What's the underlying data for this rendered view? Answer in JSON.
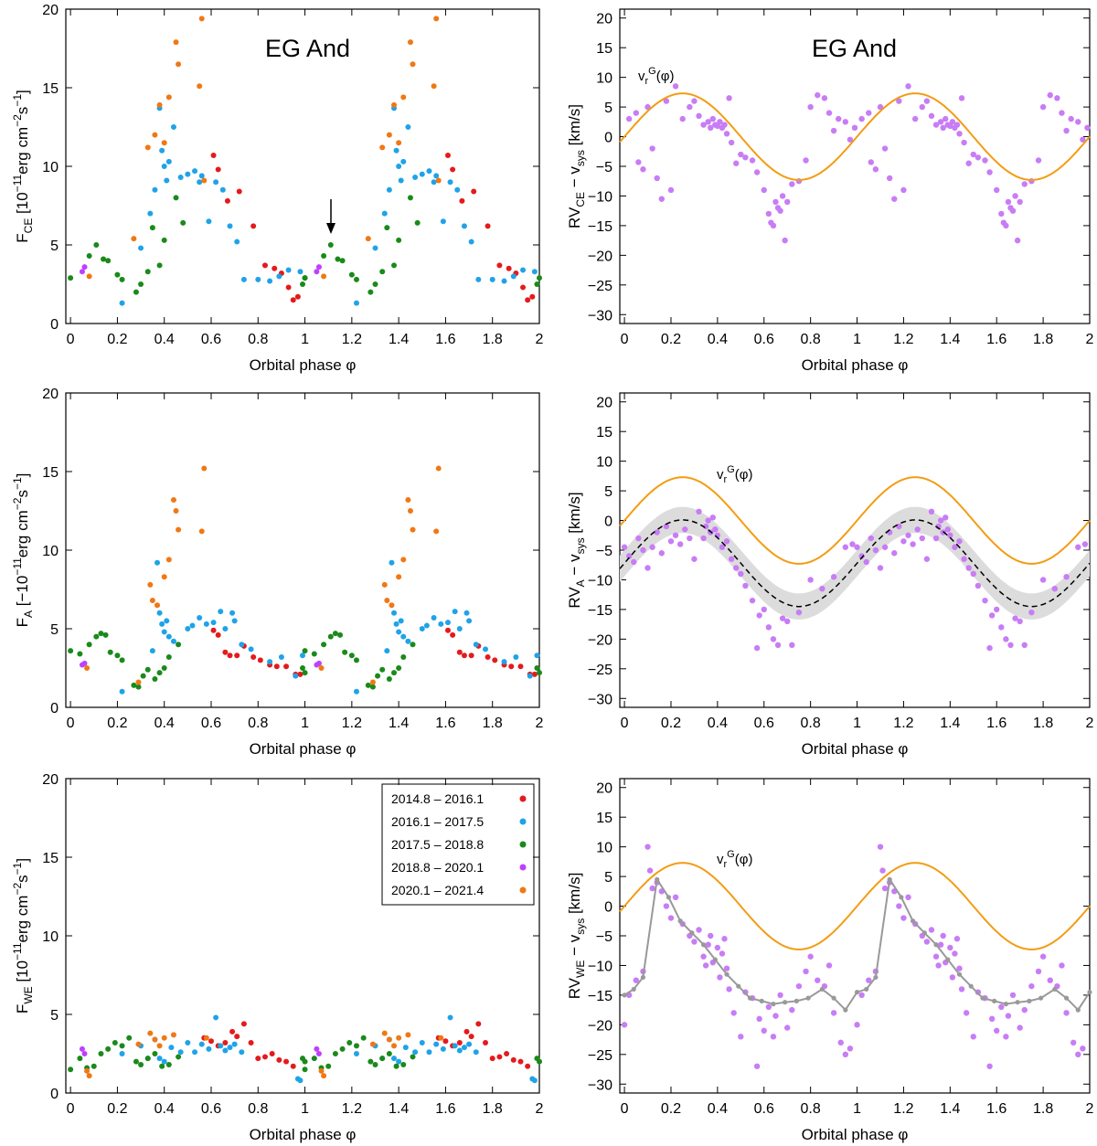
{
  "chart_data": {
    "type": "scatter",
    "figure_title": "EG And",
    "legend": [
      {
        "label": "2014.8 – 2016.1",
        "color": "#e41a1c"
      },
      {
        "label": "2016.1 – 2017.5",
        "color": "#1fa3e8"
      },
      {
        "label": "2017.5 – 2018.8",
        "color": "#1a8a1a"
      },
      {
        "label": "2018.8 – 2020.1",
        "color": "#bf3fff"
      },
      {
        "label": "2020.1 – 2021.4",
        "color": "#f07814"
      }
    ],
    "colors": {
      "orbit_curve": "#f39c12",
      "rv_points": "#c87cf5",
      "band": "#dcdcdc",
      "mean_line": "#000000",
      "we_line": "#999999"
    },
    "xlabel": "Orbital phase φ",
    "xlim": [
      -0.02,
      2.0
    ],
    "xticks": [
      "0",
      "0.2",
      "0.4",
      "0.6",
      "0.8",
      "1",
      "1.2",
      "1.4",
      "1.6",
      "1.8",
      "2"
    ],
    "flux_ylim": [
      0,
      20
    ],
    "flux_yticks": [
      "0",
      "5",
      "10",
      "15",
      "20"
    ],
    "rv_ylim": [
      -31.5,
      21.5
    ],
    "rv_yticks": [
      "20",
      "15",
      "10",
      "5",
      "0",
      "−5",
      "−10",
      "−15",
      "−20",
      "−25",
      "−30"
    ],
    "rv_curve_label": {
      "base": "v",
      "sub": "r",
      "sup": "G",
      "tail": "(φ)"
    },
    "rv_curve": {
      "amplitude": 7.3,
      "offset": 0
    },
    "panels": {
      "ce_flux": {
        "title": "EG And",
        "ylabel": {
          "base": "F",
          "sub": "CE",
          "rest": " [10",
          "exp1": "−11",
          "mid": "erg cm",
          "exp2": "−2",
          "mid2": "s",
          "exp3": "−1",
          "end": "]"
        },
        "annotation": "arrow at φ = 1.1",
        "series": [
          {
            "name": "2014.8 – 2016.1",
            "x": [
              0.67,
              0.72,
              0.78,
              0.83,
              0.87,
              0.9,
              0.93,
              0.95,
              0.97,
              0.61,
              0.63
            ],
            "y": [
              7.8,
              8.4,
              6.2,
              3.7,
              3.5,
              3.2,
              2.3,
              1.5,
              1.7,
              10.7,
              9.8
            ]
          },
          {
            "name": "2016.1 – 2017.5",
            "x": [
              0.22,
              0.3,
              0.34,
              0.36,
              0.38,
              0.39,
              0.4,
              0.41,
              0.42,
              0.44,
              0.47,
              0.5,
              0.53,
              0.55,
              0.56,
              0.59,
              0.62,
              0.65,
              0.68,
              0.71,
              0.74,
              0.8,
              0.85,
              0.89,
              0.93,
              0.98
            ],
            "y": [
              1.3,
              4.8,
              7.0,
              8.5,
              13.7,
              11.0,
              10.0,
              9.1,
              10.3,
              12.5,
              9.3,
              9.5,
              9.7,
              9.0,
              9.4,
              6.5,
              9.0,
              8.5,
              6.2,
              5.2,
              2.8,
              2.8,
              2.7,
              3.0,
              3.4,
              3.3
            ]
          },
          {
            "name": "2017.5 – 2018.8",
            "x": [
              0.0,
              0.08,
              0.11,
              0.14,
              0.16,
              0.2,
              0.22,
              0.28,
              0.3,
              0.33,
              0.35,
              0.38,
              0.4,
              0.45,
              0.48,
              0.99,
              1.0
            ],
            "y": [
              2.9,
              4.3,
              5.0,
              4.1,
              4.0,
              3.1,
              2.8,
              2.0,
              2.5,
              3.3,
              6.1,
              3.7,
              5.3,
              8.0,
              6.4,
              2.5,
              2.9
            ]
          },
          {
            "name": "2018.8 – 2020.1",
            "x": [
              0.05,
              0.06
            ],
            "y": [
              3.3,
              3.6
            ]
          },
          {
            "name": "2020.1 – 2021.4",
            "x": [
              0.08,
              0.27,
              0.33,
              0.36,
              0.38,
              0.4,
              0.42,
              0.45,
              0.46,
              0.55,
              0.56,
              0.57
            ],
            "y": [
              3.0,
              5.4,
              11.2,
              12.0,
              13.9,
              11.5,
              14.4,
              17.9,
              16.5,
              15.1,
              19.4,
              9.1
            ]
          }
        ]
      },
      "ce_rv": {
        "title": "EG And",
        "ylabel": {
          "base": "RV",
          "sub": "CE",
          "rest": " − v",
          "sub2": "sys",
          "end": " [km/s]"
        },
        "points": {
          "x": [
            0.02,
            0.05,
            0.06,
            0.08,
            0.1,
            0.12,
            0.14,
            0.16,
            0.18,
            0.2,
            0.22,
            0.25,
            0.28,
            0.3,
            0.32,
            0.34,
            0.36,
            0.37,
            0.38,
            0.39,
            0.4,
            0.41,
            0.42,
            0.43,
            0.44,
            0.45,
            0.46,
            0.48,
            0.5,
            0.52,
            0.55,
            0.57,
            0.6,
            0.62,
            0.63,
            0.64,
            0.65,
            0.66,
            0.67,
            0.68,
            0.69,
            0.7,
            0.72,
            0.75,
            0.78,
            0.8,
            0.83,
            0.86,
            0.88,
            0.9,
            0.92,
            0.95,
            0.97,
            0.99
          ],
          "y": [
            3.0,
            4.0,
            -4.3,
            -5.5,
            5.0,
            -2.0,
            -7.0,
            -10.5,
            6.0,
            -9.0,
            8.5,
            3.0,
            5.0,
            6.0,
            3.5,
            2.0,
            2.5,
            1.5,
            3.0,
            2.0,
            1.8,
            2.5,
            1.5,
            2.0,
            0.5,
            6.5,
            -1.0,
            -4.5,
            -3.0,
            -3.5,
            -4.0,
            -6.0,
            -9.0,
            -13.0,
            -14.5,
            -15.0,
            -11.0,
            -12.0,
            -12.5,
            -10.0,
            -17.5,
            -11.0,
            -8.0,
            -7.5,
            -4.0,
            5.0,
            7.0,
            6.5,
            4.0,
            1.0,
            3.0,
            2.5,
            -0.5,
            1.5
          ]
        }
      },
      "a_flux": {
        "ylabel": {
          "base": "F",
          "sub": "A",
          "rest": " [−10",
          "exp1": "−11",
          "mid": "erg cm",
          "exp2": "−2",
          "mid2": "s",
          "exp3": "−1",
          "end": "]"
        },
        "series": [
          {
            "name": "2014.8 – 2016.1",
            "x": [
              0.61,
              0.63,
              0.66,
              0.68,
              0.71,
              0.74,
              0.78,
              0.81,
              0.85,
              0.88,
              0.92,
              0.96,
              0.98
            ],
            "y": [
              4.9,
              4.6,
              3.5,
              3.3,
              3.3,
              3.9,
              3.2,
              3.0,
              2.7,
              2.6,
              2.6,
              2.1,
              2.1
            ]
          },
          {
            "name": "2016.1 – 2017.5",
            "x": [
              0.22,
              0.35,
              0.37,
              0.38,
              0.39,
              0.4,
              0.41,
              0.42,
              0.44,
              0.5,
              0.52,
              0.55,
              0.58,
              0.61,
              0.64,
              0.66,
              0.69,
              0.7,
              0.73,
              0.77,
              0.85,
              0.9,
              0.96,
              0.99
            ],
            "y": [
              1.0,
              3.6,
              9.2,
              6.0,
              5.3,
              4.8,
              5.5,
              4.5,
              4.2,
              5.0,
              5.2,
              5.7,
              5.3,
              5.4,
              6.1,
              5.0,
              6.0,
              5.5,
              4.0,
              3.7,
              2.9,
              3.2,
              2.0,
              3.3
            ]
          },
          {
            "name": "2017.5 – 2018.8",
            "x": [
              0.0,
              0.04,
              0.08,
              0.11,
              0.13,
              0.15,
              0.17,
              0.2,
              0.22,
              0.27,
              0.29,
              0.31,
              0.33,
              0.36,
              0.38,
              0.4,
              0.42,
              0.46,
              0.99,
              1.0
            ],
            "y": [
              3.6,
              3.4,
              4.0,
              4.5,
              4.7,
              4.6,
              3.5,
              3.3,
              3.0,
              1.4,
              1.3,
              2.0,
              2.4,
              1.8,
              2.2,
              2.5,
              3.2,
              4.0,
              2.5,
              2.2
            ]
          },
          {
            "name": "2018.8 – 2020.1",
            "x": [
              0.05,
              0.06
            ],
            "y": [
              2.7,
              2.8
            ]
          },
          {
            "name": "2020.1 – 2021.4",
            "x": [
              0.07,
              0.29,
              0.34,
              0.35,
              0.37,
              0.4,
              0.42,
              0.44,
              0.45,
              0.46,
              0.56,
              0.57
            ],
            "y": [
              2.5,
              1.6,
              7.8,
              6.8,
              6.5,
              8.3,
              9.4,
              13.2,
              12.5,
              11.3,
              11.2,
              15.2
            ]
          }
        ]
      },
      "a_rv": {
        "ylabel": {
          "base": "RV",
          "sub": "A",
          "rest": " − v",
          "sub2": "sys",
          "end": " [km/s]"
        },
        "model_offset": -7.2,
        "model_amplitude": 7.3,
        "band_half_width": 2.2,
        "points": {
          "x": [
            0.0,
            0.02,
            0.04,
            0.06,
            0.08,
            0.1,
            0.12,
            0.14,
            0.16,
            0.18,
            0.2,
            0.22,
            0.24,
            0.26,
            0.28,
            0.3,
            0.32,
            0.34,
            0.35,
            0.36,
            0.37,
            0.38,
            0.39,
            0.4,
            0.42,
            0.44,
            0.46,
            0.48,
            0.5,
            0.52,
            0.55,
            0.57,
            0.58,
            0.6,
            0.62,
            0.64,
            0.66,
            0.68,
            0.7,
            0.72,
            0.75,
            0.8,
            0.85,
            0.9,
            0.95,
            0.98
          ],
          "y": [
            -4.5,
            -6.0,
            -7.0,
            -3.0,
            -5.0,
            -8.0,
            -4.5,
            -2.0,
            -5.5,
            -1.0,
            -3.5,
            -2.5,
            -4.0,
            -1.5,
            -3.0,
            -6.5,
            1.5,
            -3.0,
            -1.0,
            0.0,
            -2.0,
            0.5,
            -1.5,
            -2.5,
            -4.5,
            -3.5,
            -6.5,
            -8.0,
            -9.0,
            -11.0,
            -13.5,
            -21.5,
            -16.0,
            -15.0,
            -18.0,
            -20.0,
            -21.0,
            -16.5,
            -17.0,
            -21.0,
            -15.5,
            -10.0,
            -11.5,
            -9.5,
            -4.5,
            -4.0
          ]
        }
      },
      "we_flux": {
        "ylabel": {
          "base": "F",
          "sub": "WE",
          "rest": " [10",
          "exp1": "−11",
          "mid": "erg cm",
          "exp2": "−2",
          "mid2": "s",
          "exp3": "−1",
          "end": "]"
        },
        "series": [
          {
            "name": "2014.8 – 2016.1",
            "x": [
              0.57,
              0.6,
              0.63,
              0.66,
              0.69,
              0.71,
              0.74,
              0.77,
              0.8,
              0.83,
              0.86,
              0.89,
              0.92,
              0.95
            ],
            "y": [
              3.5,
              3.3,
              3.0,
              3.2,
              3.9,
              3.6,
              4.4,
              3.2,
              2.2,
              2.3,
              2.5,
              2.1,
              2.0,
              1.7
            ]
          },
          {
            "name": "2016.1 – 2017.5",
            "x": [
              0.22,
              0.3,
              0.33,
              0.36,
              0.38,
              0.4,
              0.43,
              0.47,
              0.5,
              0.53,
              0.56,
              0.59,
              0.62,
              0.64,
              0.66,
              0.68,
              0.7,
              0.73,
              0.97,
              0.98
            ],
            "y": [
              2.5,
              3.0,
              2.2,
              3.4,
              2.2,
              2.0,
              2.9,
              2.6,
              3.2,
              2.6,
              3.1,
              2.8,
              4.8,
              3.0,
              2.7,
              2.9,
              3.1,
              2.6,
              0.9,
              0.8
            ]
          },
          {
            "name": "2017.5 – 2018.8",
            "x": [
              0.0,
              0.04,
              0.07,
              0.1,
              0.13,
              0.16,
              0.19,
              0.22,
              0.25,
              0.28,
              0.3,
              0.33,
              0.36,
              0.39,
              0.42,
              0.46,
              0.99,
              1.0
            ],
            "y": [
              1.5,
              2.2,
              1.6,
              1.7,
              2.5,
              2.8,
              3.2,
              3.0,
              3.5,
              2.0,
              1.8,
              2.2,
              2.5,
              1.7,
              1.8,
              2.3,
              2.2,
              2.0
            ]
          },
          {
            "name": "2018.8 – 2020.1",
            "x": [
              0.05,
              0.06
            ],
            "y": [
              2.8,
              2.5
            ]
          },
          {
            "name": "2020.1 – 2021.4",
            "x": [
              0.07,
              0.08,
              0.29,
              0.34,
              0.36,
              0.38,
              0.4,
              0.44,
              0.58
            ],
            "y": [
              1.4,
              1.1,
              3.1,
              3.8,
              3.4,
              3.0,
              3.5,
              3.7,
              3.5
            ]
          }
        ]
      },
      "we_rv": {
        "ylabel": {
          "base": "RV",
          "sub": "WE",
          "rest": " − v",
          "sub2": "sys",
          "end": " [km/s]"
        },
        "line": {
          "x": [
            0.0,
            0.04,
            0.08,
            0.14,
            0.19,
            0.24,
            0.29,
            0.34,
            0.39,
            0.44,
            0.49,
            0.54,
            0.59,
            0.64,
            0.69,
            0.74,
            0.79,
            0.85,
            0.9,
            0.95,
            1.0
          ],
          "y": [
            -15.0,
            -14.0,
            -12.0,
            4.5,
            1.5,
            -2.5,
            -4.5,
            -6.5,
            -9.0,
            -11.5,
            -13.5,
            -15.5,
            -16.0,
            -16.5,
            -16.2,
            -16.0,
            -15.5,
            -14.0,
            -15.5,
            -17.5,
            -14.5
          ]
        },
        "points": {
          "x": [
            0.0,
            0.02,
            0.05,
            0.08,
            0.1,
            0.11,
            0.12,
            0.14,
            0.16,
            0.18,
            0.2,
            0.22,
            0.25,
            0.28,
            0.3,
            0.32,
            0.34,
            0.35,
            0.36,
            0.37,
            0.38,
            0.4,
            0.41,
            0.42,
            0.43,
            0.44,
            0.45,
            0.47,
            0.5,
            0.52,
            0.55,
            0.57,
            0.58,
            0.6,
            0.62,
            0.64,
            0.65,
            0.67,
            0.7,
            0.72,
            0.75,
            0.78,
            0.8,
            0.83,
            0.86,
            0.88,
            0.9,
            0.93,
            0.95,
            0.97
          ],
          "y": [
            -20.0,
            -15.0,
            -12.5,
            -11.0,
            10.0,
            6.0,
            3.0,
            4.0,
            2.5,
            0.0,
            -2.0,
            1.5,
            -3.0,
            -5.0,
            -6.0,
            -4.0,
            -8.5,
            -10.0,
            -6.5,
            -5.0,
            -9.5,
            -7.0,
            -12.0,
            -8.0,
            -5.5,
            -10.5,
            -14.0,
            -18.0,
            -22.0,
            -14.5,
            -15.5,
            -27.0,
            -19.0,
            -21.0,
            -17.0,
            -22.0,
            -18.5,
            -15.0,
            -20.5,
            -17.5,
            -13.5,
            -11.0,
            -8.5,
            -12.5,
            -13.5,
            -10.0,
            -18.0,
            -23.0,
            -25.0,
            -24.0
          ]
        }
      }
    }
  }
}
